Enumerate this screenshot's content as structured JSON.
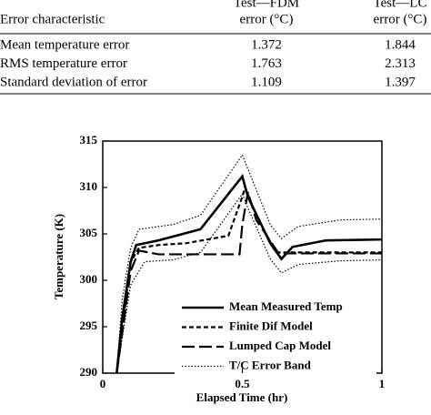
{
  "table": {
    "header": [
      "Error characteristic",
      [
        "Test—FDM",
        "error (°C)"
      ],
      [
        "Test—LC",
        "error (°C)"
      ]
    ],
    "rows": [
      [
        "Mean temperature error",
        "1.372",
        "1.844"
      ],
      [
        "RMS temperature error",
        "1.763",
        "2.313"
      ],
      [
        "Standard deviation of error",
        "1.109",
        "1.397"
      ]
    ]
  },
  "chart_data": {
    "type": "line",
    "xlabel": "Elapsed Time (hr)",
    "ylabel": "Temperature (K)",
    "xlim": [
      0,
      1
    ],
    "ylim": [
      290,
      315
    ],
    "xticks": [
      0,
      0.5,
      1
    ],
    "yticks": [
      290,
      295,
      300,
      305,
      310,
      315
    ],
    "series": [
      {
        "name": "Mean Measured Temp",
        "color": "#000",
        "dash": "solid",
        "width": 2.6,
        "x": [
          0.05,
          0.07,
          0.1,
          0.12,
          0.2,
          0.35,
          0.5,
          0.52,
          0.6,
          0.64,
          0.68,
          0.8,
          1
        ],
        "values": [
          290,
          296,
          302,
          303.8,
          304.3,
          305.5,
          311.2,
          309,
          304,
          302.3,
          303.6,
          304.3,
          304.4
        ]
      },
      {
        "name": "Finite Dif Model",
        "color": "#000",
        "dash": "short",
        "width": 2.2,
        "x": [
          0.05,
          0.1,
          0.13,
          0.2,
          0.3,
          0.45,
          0.5,
          0.51,
          0.55,
          0.62,
          0.7,
          1
        ],
        "values": [
          290,
          302,
          303.5,
          303.8,
          304,
          304.8,
          309,
          310,
          307,
          303,
          303,
          303
        ]
      },
      {
        "name": "Lumped Cap Model",
        "color": "#000",
        "dash": "long",
        "width": 2.2,
        "x": [
          0.05,
          0.1,
          0.13,
          0.2,
          0.3,
          0.49,
          0.5,
          0.52,
          0.55,
          0.63,
          1
        ],
        "values": [
          290,
          301,
          303.2,
          302.8,
          302.8,
          302.8,
          306,
          309.5,
          306.5,
          302.9,
          302.9
        ]
      },
      {
        "name": "T/C Error Band",
        "color": "#000",
        "dash": "dot",
        "width": 1.2,
        "band": [
          {
            "x": [
              0.05,
              0.07,
              0.1,
              0.13,
              0.25,
              0.35,
              0.5,
              0.52,
              0.6,
              0.64,
              0.7,
              0.85,
              1
            ],
            "values": [
              290,
              298,
              303.5,
              305.5,
              306,
              307,
              313.5,
              312,
              306,
              304.5,
              305.8,
              306.5,
              306.6
            ]
          },
          {
            "x": [
              0.05,
              0.1,
              0.15,
              0.25,
              0.35,
              0.5,
              0.52,
              0.6,
              0.64,
              0.7,
              0.85,
              1
            ],
            "values": [
              290,
              299.5,
              302,
              302.2,
              303,
              309.3,
              307.8,
              302.3,
              300.8,
              301.7,
              302.1,
              302.2
            ]
          }
        ]
      }
    ]
  }
}
